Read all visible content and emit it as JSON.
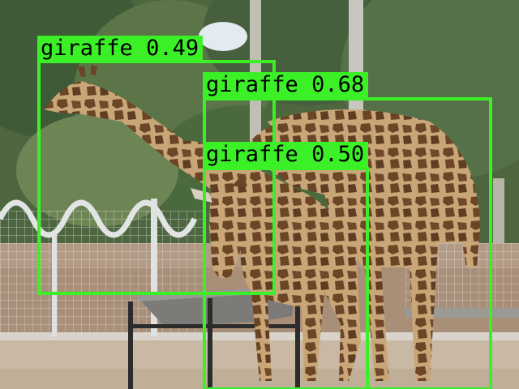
{
  "detections": [
    {
      "label": "giraffe",
      "score": "0.49"
    },
    {
      "label": "giraffe",
      "score": "0.68"
    },
    {
      "label": "giraffe",
      "score": "0.50"
    }
  ],
  "colors": {
    "box": "#3cf028",
    "label_text": "#000000",
    "sky": "#d9e4ec",
    "foliage": "#4d6640",
    "ground": "#c9b8a3",
    "giraffe_base": "#c9a678",
    "giraffe_spot": "#6b4526"
  }
}
